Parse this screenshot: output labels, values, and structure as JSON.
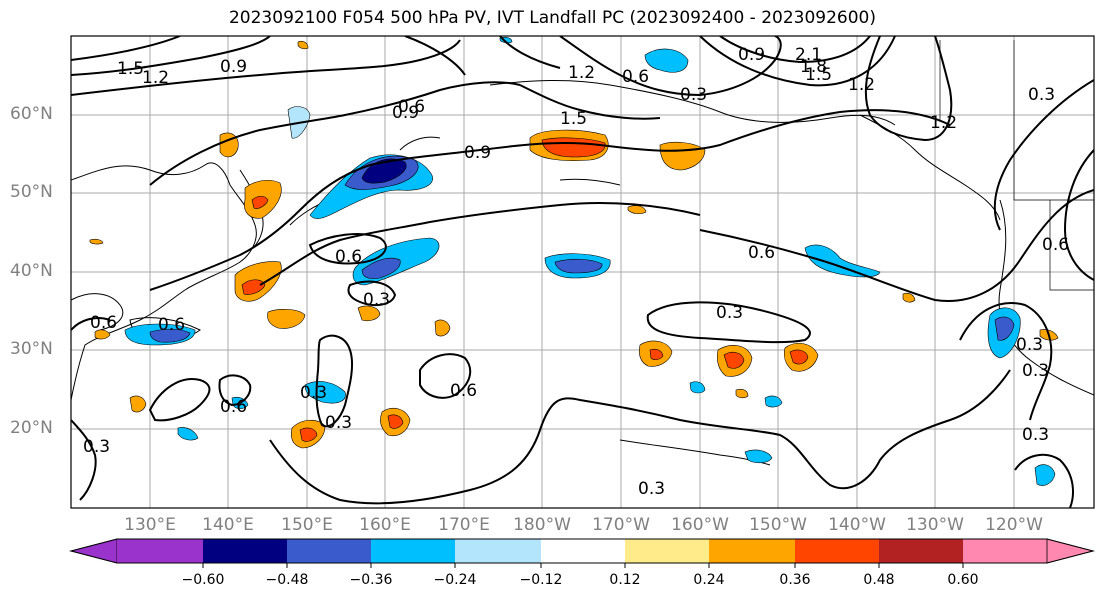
{
  "title": "2023092100 F054 500 hPa PV, IVT Landfall PC (2023092400 - 2023092600)",
  "lat_labels": [
    "60°N",
    "50°N",
    "40°N",
    "30°N",
    "20°N"
  ],
  "lon_labels": [
    "130°E",
    "140°E",
    "150°E",
    "160°E",
    "170°E",
    "180°W",
    "170°W",
    "160°W",
    "150°W",
    "140°W",
    "130°W",
    "120°W"
  ],
  "colorbar": {
    "ticks": [
      "−0.60",
      "−0.48",
      "−0.36",
      "−0.24",
      "−0.12",
      "0.12",
      "0.24",
      "0.36",
      "0.48",
      "0.60"
    ],
    "colors": [
      "#9933cc",
      "#000080",
      "#3a5bcc",
      "#00bfff",
      "#b3e5fc",
      "#ffffff",
      "#ffeb8a",
      "#ffa500",
      "#ff4500",
      "#b22222",
      "#ff88b0"
    ]
  },
  "contour_labels": [
    "1.5",
    "1.2",
    "0.9",
    "2.1",
    "1.8",
    "1.5",
    "1.2",
    "0.9",
    "1.2",
    "0.3",
    "0.6",
    "0.9",
    "1.2",
    "1.5",
    "0.9",
    "0.6",
    "0.6",
    "0.3",
    "0.6",
    "0.3",
    "0.3",
    "0.6",
    "0.3",
    "0.6",
    "0.3",
    "0.6",
    "0.3",
    "0.3",
    "0.6",
    "0.3",
    "0.3",
    "0.6",
    "0.3"
  ]
}
